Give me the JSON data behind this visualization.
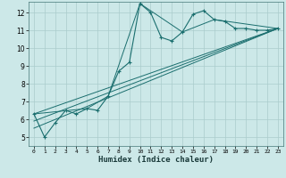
{
  "xlabel": "Humidex (Indice chaleur)",
  "bg_color": "#cce8e8",
  "grid_color": "#aacccc",
  "line_color": "#1a6e6e",
  "xlim": [
    -0.5,
    23.5
  ],
  "ylim": [
    4.5,
    12.6
  ],
  "xticks": [
    0,
    1,
    2,
    3,
    4,
    5,
    6,
    7,
    8,
    9,
    10,
    11,
    12,
    13,
    14,
    15,
    16,
    17,
    18,
    19,
    20,
    21,
    22,
    23
  ],
  "yticks": [
    5,
    6,
    7,
    8,
    9,
    10,
    11,
    12
  ],
  "main_x": [
    0,
    1,
    2,
    3,
    4,
    5,
    6,
    7,
    8,
    9,
    10,
    11,
    12,
    13,
    14,
    15,
    16,
    17,
    18,
    19,
    20,
    21,
    22,
    23
  ],
  "main_y": [
    6.3,
    5.0,
    5.8,
    6.5,
    6.3,
    6.6,
    6.5,
    7.3,
    8.7,
    9.2,
    12.5,
    12.0,
    10.6,
    10.4,
    10.9,
    11.9,
    12.1,
    11.6,
    11.5,
    11.1,
    11.1,
    11.0,
    11.0,
    11.1
  ],
  "line2_x": [
    0,
    5,
    7,
    10,
    14,
    17,
    23
  ],
  "line2_y": [
    6.3,
    6.6,
    7.3,
    12.5,
    10.9,
    11.6,
    11.1
  ],
  "line3_x": [
    0,
    23
  ],
  "line3_y": [
    6.3,
    11.1
  ],
  "line4_x": [
    0,
    23
  ],
  "line4_y": [
    5.9,
    11.1
  ],
  "line5_x": [
    0,
    23
  ],
  "line5_y": [
    5.5,
    11.1
  ]
}
